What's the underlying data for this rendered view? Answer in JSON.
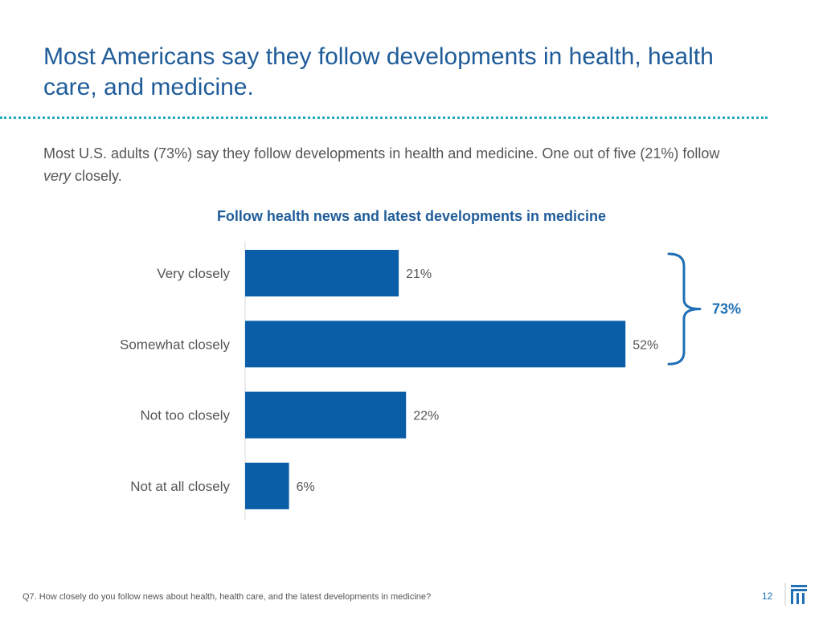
{
  "slide": {
    "title": "Most Americans say they follow developments in health, health care, and medicine.",
    "subtitle_lead": "Most U.S. adults (73%) say they follow developments in health and medicine. One out of five (21%) follow ",
    "subtitle_em": "very",
    "subtitle_tail": " closely.",
    "footnote": "Q7. How closely do you follow news about health, health care, and the latest developments in medicine?",
    "page_number": "12"
  },
  "chart_data": {
    "type": "bar",
    "orientation": "horizontal",
    "title": "Follow health news and latest developments in medicine",
    "categories": [
      "Very closely",
      "Somewhat closely",
      "Not too closely",
      "Not at all closely"
    ],
    "values": [
      21,
      52,
      22,
      6
    ],
    "value_labels": [
      "21%",
      "52%",
      "22%",
      "6%"
    ],
    "unit": "%",
    "xlim": [
      0,
      100
    ],
    "grid": false,
    "bar_color": "#0a5ea8",
    "bracket": {
      "covers": [
        "Very closely",
        "Somewhat closely"
      ],
      "label": "73%",
      "color": "#1f6fb5"
    }
  },
  "colors": {
    "title": "#1f5c99",
    "divider": "#25a9c2",
    "text": "#555555",
    "accent": "#1f6fb5"
  },
  "icons": {
    "logo": "institution-logo-icon"
  }
}
